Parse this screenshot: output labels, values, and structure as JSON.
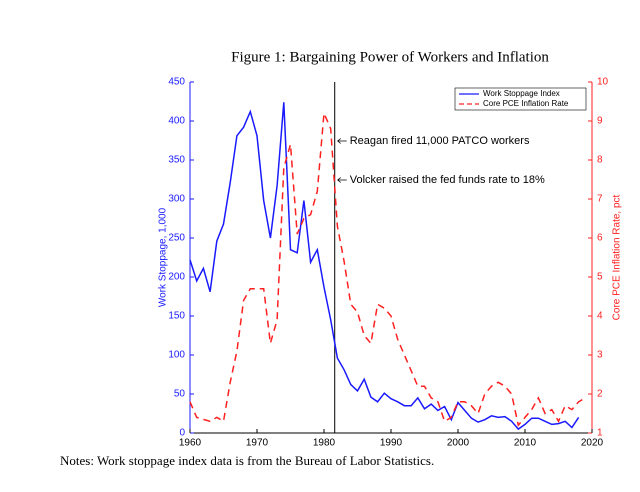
{
  "chart_data": {
    "type": "line",
    "title": "Figure 1: Bargaining Power of Workers and Inflation",
    "note": "Notes: Work stoppage index data is from the Bureau of Labor Statistics.",
    "ylabel": "Work Stoppage, 1,000",
    "y2label": "Core PCE Inflation Rate, pct",
    "x": [
      1960,
      1961,
      1962,
      1963,
      1964,
      1965,
      1966,
      1967,
      1968,
      1969,
      1970,
      1971,
      1972,
      1973,
      1974,
      1975,
      1976,
      1977,
      1978,
      1979,
      1980,
      1981,
      1982,
      1983,
      1984,
      1985,
      1986,
      1987,
      1988,
      1989,
      1990,
      1991,
      1992,
      1993,
      1994,
      1995,
      1996,
      1997,
      1998,
      1999,
      2000,
      2001,
      2002,
      2003,
      2004,
      2005,
      2006,
      2007,
      2008,
      2009,
      2010,
      2011,
      2012,
      2013,
      2014,
      2015,
      2016,
      2017,
      2018,
      2019
    ],
    "xlim": [
      1960,
      2020
    ],
    "xticks": [
      1960,
      1970,
      1980,
      1990,
      2000,
      2010,
      2020
    ],
    "ylim": [
      0,
      450
    ],
    "yticks": [
      0,
      50,
      100,
      150,
      200,
      250,
      300,
      350,
      400,
      450
    ],
    "y2lim": [
      1,
      10
    ],
    "y2ticks": [
      1,
      2,
      3,
      4,
      5,
      6,
      7,
      8,
      9,
      10
    ],
    "vline": 1981.6,
    "annotations": [
      "Reagan fired 11,000 PATCO workers",
      "Volcker raised the fed funds rate to 18%"
    ],
    "series": [
      {
        "name": "Work Stoppage Index",
        "color": "#1a1aff",
        "axis": "y",
        "dashed": false,
        "values": [
          222,
          195,
          211,
          181,
          246,
          268,
          321,
          381,
          392,
          412,
          381,
          298,
          250,
          317,
          424,
          235,
          231,
          298,
          219,
          235,
          187,
          145,
          96,
          81,
          62,
          54,
          69,
          46,
          40,
          51,
          44,
          40,
          35,
          35,
          45,
          31,
          37,
          29,
          34,
          17,
          39,
          29,
          19,
          14,
          17,
          22,
          20,
          21,
          15,
          5,
          11,
          19,
          19,
          15,
          11,
          12,
          15,
          7,
          20,
          null
        ]
      },
      {
        "name": "Core PCE Inflation Rate",
        "color": "#ff2020",
        "axis": "y2",
        "dashed": true,
        "values": [
          1.8,
          1.4,
          1.35,
          1.3,
          1.4,
          1.3,
          2.3,
          3.1,
          4.4,
          4.7,
          4.7,
          4.7,
          3.3,
          3.9,
          7.8,
          8.4,
          6.1,
          6.5,
          6.6,
          7.2,
          9.2,
          8.8,
          6.3,
          5.4,
          4.3,
          4.1,
          3.5,
          3.3,
          4.3,
          4.2,
          4.0,
          3.4,
          3.0,
          2.6,
          2.2,
          2.2,
          1.9,
          1.8,
          1.3,
          1.4,
          1.8,
          1.8,
          1.7,
          1.5,
          2.0,
          2.2,
          2.3,
          2.2,
          2.0,
          1.2,
          1.4,
          1.6,
          1.9,
          1.5,
          1.6,
          1.3,
          1.7,
          1.6,
          1.8,
          1.9
        ]
      }
    ],
    "legend": "upper right"
  }
}
